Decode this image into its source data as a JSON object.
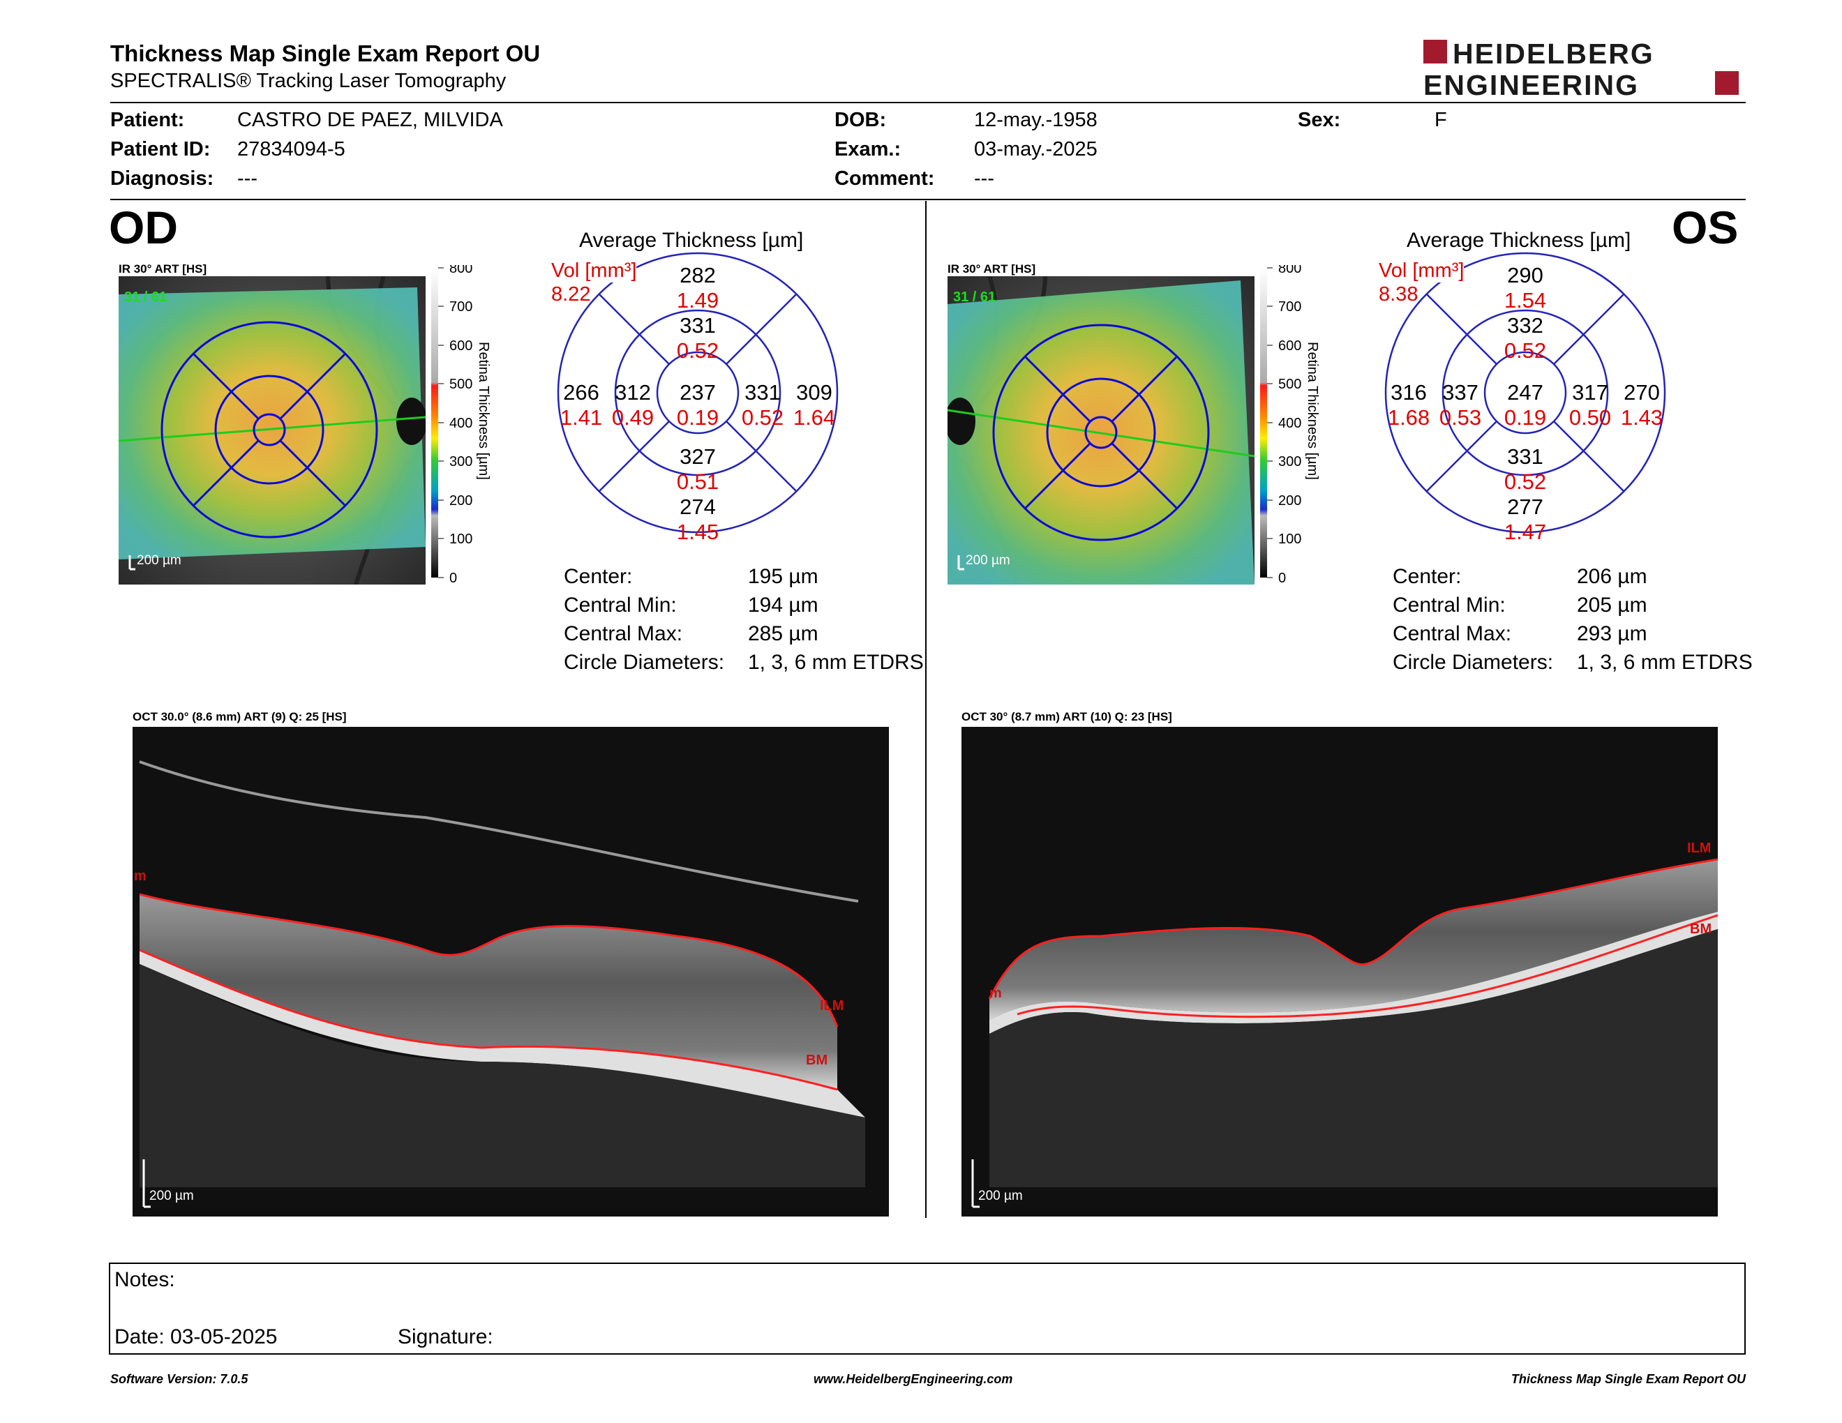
{
  "header": {
    "title": "Thickness Map Single Exam Report OU",
    "subtitle": "SPECTRALIS® Tracking Laser Tomography",
    "brand_line1": "HEIDELBERG",
    "brand_line2": "ENGINEERING",
    "brand_color": "#a3192e"
  },
  "patient": {
    "patient_label": "Patient:",
    "patient_value": "CASTRO DE PAEZ, MILVIDA",
    "id_label": "Patient ID:",
    "id_value": "27834094-5",
    "diagnosis_label": "Diagnosis:",
    "diagnosis_value": "---",
    "dob_label": "DOB:",
    "dob_value": "12-may.-1958",
    "exam_label": "Exam.:",
    "exam_value": "03-may.-2025",
    "comment_label": "Comment:",
    "comment_value": "---",
    "sex_label": "Sex:",
    "sex_value": "F"
  },
  "od": {
    "eye": "OD",
    "fundus_label": "IR 30° ART [HS]",
    "fundus_overlay": "31 / 61",
    "scale_bar": "200 µm",
    "colorbar_ticks": [
      "800",
      "700",
      "600",
      "500",
      "400",
      "300",
      "200",
      "100",
      "0"
    ],
    "colorbar_title": "Retina Thickness [µm]",
    "avg_title": "Average Thickness [µm]",
    "vol_label": "Vol [mm³]",
    "vol_total": "8.22",
    "sectors": {
      "outer_sup": {
        "t": "282",
        "v": "1.49"
      },
      "inner_sup": {
        "t": "331",
        "v": "0.52"
      },
      "outer_temp": {
        "t": "266",
        "v": "1.41"
      },
      "inner_temp": {
        "t": "312",
        "v": "0.49"
      },
      "center": {
        "t": "237",
        "v": "0.19"
      },
      "inner_nasal": {
        "t": "331",
        "v": "0.52"
      },
      "outer_nasal": {
        "t": "309",
        "v": "1.64"
      },
      "inner_inf": {
        "t": "327",
        "v": "0.51"
      },
      "outer_inf": {
        "t": "274",
        "v": "1.45"
      }
    },
    "stats": {
      "center_label": "Center:",
      "center_value": "195 µm",
      "min_label": "Central Min:",
      "min_value": "194 µm",
      "max_label": "Central Max:",
      "max_value": "285 µm",
      "diam_label": "Circle Diameters:",
      "diam_value": "1, 3, 6 mm ETDRS"
    },
    "oct_label": "OCT 30.0° (8.6 mm) ART (9) Q: 25 [HS]",
    "oct_scale": "200 µm",
    "layer_ilm": "ILM",
    "layer_bm": "BM",
    "layer_m": "m"
  },
  "os": {
    "eye": "OS",
    "fundus_label": "IR 30° ART [HS]",
    "fundus_overlay": "31 / 61",
    "scale_bar": "200 µm",
    "colorbar_ticks": [
      "800",
      "700",
      "600",
      "500",
      "400",
      "300",
      "200",
      "100",
      "0"
    ],
    "colorbar_title": "Retina Thickness [µm]",
    "avg_title": "Average Thickness [µm]",
    "vol_label": "Vol [mm³]",
    "vol_total": "8.38",
    "sectors": {
      "outer_sup": {
        "t": "290",
        "v": "1.54"
      },
      "inner_sup": {
        "t": "332",
        "v": "0.52"
      },
      "outer_temp": {
        "t": "316",
        "v": "1.68"
      },
      "inner_temp": {
        "t": "337",
        "v": "0.53"
      },
      "center": {
        "t": "247",
        "v": "0.19"
      },
      "inner_nasal": {
        "t": "317",
        "v": "0.50"
      },
      "outer_nasal": {
        "t": "270",
        "v": "1.43"
      },
      "inner_inf": {
        "t": "331",
        "v": "0.52"
      },
      "outer_inf": {
        "t": "277",
        "v": "1.47"
      }
    },
    "stats": {
      "center_label": "Center:",
      "center_value": "206 µm",
      "min_label": "Central Min:",
      "min_value": "205 µm",
      "max_label": "Central Max:",
      "max_value": "293 µm",
      "diam_label": "Circle Diameters:",
      "diam_value": "1, 3, 6 mm ETDRS"
    },
    "oct_label": "OCT 30° (8.7 mm) ART (10) Q: 23 [HS]",
    "oct_scale": "200 µm",
    "layer_ilm": "ILM",
    "layer_bm": "BM",
    "layer_m": "m"
  },
  "notes": {
    "notes_label": "Notes:",
    "date_label": "Date: 03-05-2025",
    "signature_label": "Signature:"
  },
  "footer": {
    "software": "Software Version: 7.0.5",
    "website": "www.HeidelbergEngineering.com",
    "report_name": "Thickness Map Single Exam Report OU"
  }
}
